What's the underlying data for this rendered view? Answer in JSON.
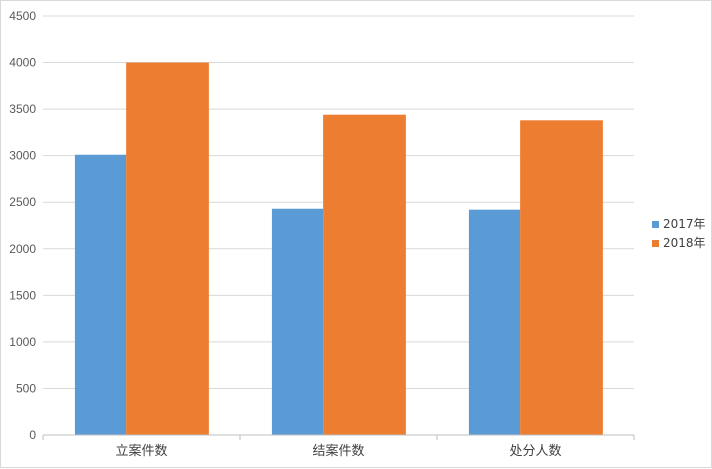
{
  "chart_data": {
    "type": "bar",
    "categories": [
      "立案件数",
      "结案件数",
      "处分人数"
    ],
    "series": [
      {
        "name": "2017年",
        "values": [
          3010,
          2430,
          2420
        ],
        "color": "#5b9bd5"
      },
      {
        "name": "2018年",
        "values": [
          4000,
          3440,
          3380
        ],
        "color": "#ed7d31"
      }
    ],
    "yticks": [
      0,
      500,
      1000,
      1500,
      2000,
      2500,
      3000,
      3500,
      4000,
      4500
    ],
    "ylim": [
      0,
      4500
    ],
    "grid": true,
    "legend_position": "right",
    "axis_color": "#bfbfbf",
    "grid_color": "#d9d9d9"
  }
}
